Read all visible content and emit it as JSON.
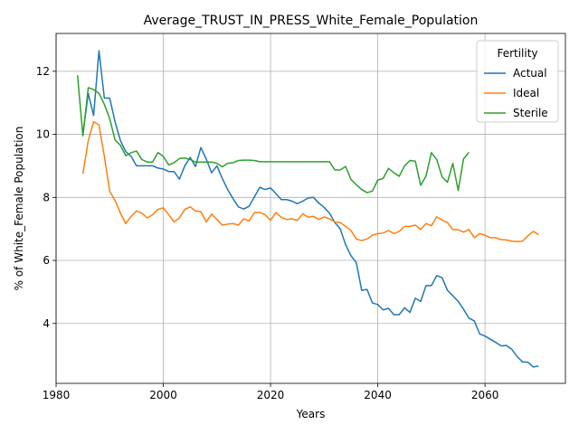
{
  "chart_data": {
    "type": "line",
    "title": "Average_TRUST_IN_PRESS_White_Female_Population",
    "xlabel": "Years",
    "ylabel": "% of White_Female Population",
    "xlim": [
      1980,
      2075
    ],
    "ylim": [
      2.1,
      13.2
    ],
    "xticks": [
      1980,
      2000,
      2020,
      2040,
      2060
    ],
    "yticks": [
      4,
      6,
      8,
      10,
      12
    ],
    "grid": true,
    "legend": {
      "title": "Fertility",
      "position": "top-right"
    },
    "series": [
      {
        "name": "Actual",
        "color": "#1f77b4",
        "x": [
          1985,
          1986,
          1987,
          1988,
          1989,
          1990,
          1991,
          1992,
          1993,
          1994,
          1995,
          1996,
          1997,
          1998,
          1999,
          2000,
          2001,
          2002,
          2003,
          2004,
          2005,
          2006,
          2007,
          2008,
          2009,
          2010,
          2011,
          2012,
          2013,
          2014,
          2015,
          2016,
          2017,
          2018,
          2019,
          2020,
          2021,
          2022,
          2023,
          2024,
          2025,
          2026,
          2027,
          2028,
          2029,
          2030,
          2031,
          2032,
          2033,
          2034,
          2035,
          2036,
          2037,
          2038,
          2039,
          2040,
          2041,
          2042,
          2043,
          2044,
          2045,
          2046,
          2047,
          2048,
          2049,
          2050,
          2051,
          2052,
          2053,
          2054,
          2055,
          2056,
          2057,
          2058,
          2059,
          2060,
          2061,
          2062,
          2063,
          2064,
          2065,
          2066,
          2067,
          2068,
          2069,
          2070
        ],
        "y": [
          10.0,
          11.3,
          10.6,
          12.65,
          11.15,
          11.15,
          10.4,
          9.8,
          9.45,
          9.3,
          9.0,
          9.0,
          9.0,
          9.0,
          8.93,
          8.9,
          8.82,
          8.82,
          8.58,
          9.0,
          9.27,
          8.98,
          9.58,
          9.22,
          8.78,
          9.0,
          8.6,
          8.25,
          7.96,
          7.7,
          7.63,
          7.72,
          8.02,
          8.32,
          8.25,
          8.3,
          8.12,
          7.93,
          7.93,
          7.88,
          7.8,
          7.88,
          7.98,
          8.0,
          7.82,
          7.68,
          7.5,
          7.2,
          7.0,
          6.5,
          6.15,
          5.93,
          5.05,
          5.08,
          4.65,
          4.6,
          4.43,
          4.48,
          4.28,
          4.28,
          4.5,
          4.35,
          4.8,
          4.7,
          5.2,
          5.2,
          5.52,
          5.45,
          5.05,
          4.88,
          4.7,
          4.45,
          4.17,
          4.08,
          3.67,
          3.6,
          3.5,
          3.4,
          3.29,
          3.3,
          3.18,
          2.95,
          2.78,
          2.77,
          2.62,
          2.65
        ]
      },
      {
        "name": "Ideal",
        "color": "#ff7f0e",
        "x": [
          1985,
          1986,
          1987,
          1988,
          1989,
          1990,
          1991,
          1992,
          1993,
          1994,
          1995,
          1996,
          1997,
          1998,
          1999,
          2000,
          2001,
          2002,
          2003,
          2004,
          2005,
          2006,
          2007,
          2008,
          2009,
          2010,
          2011,
          2012,
          2013,
          2014,
          2015,
          2016,
          2017,
          2018,
          2019,
          2020,
          2021,
          2022,
          2023,
          2024,
          2025,
          2026,
          2027,
          2028,
          2029,
          2030,
          2031,
          2032,
          2033,
          2034,
          2035,
          2036,
          2037,
          2038,
          2039,
          2040,
          2041,
          2042,
          2043,
          2044,
          2045,
          2046,
          2047,
          2048,
          2049,
          2050,
          2051,
          2052,
          2053,
          2054,
          2055,
          2056,
          2057,
          2058,
          2059,
          2060,
          2061,
          2062,
          2063,
          2064,
          2065,
          2066,
          2067,
          2068,
          2069,
          2070
        ],
        "y": [
          8.75,
          9.8,
          10.4,
          10.3,
          9.3,
          8.2,
          7.9,
          7.5,
          7.17,
          7.4,
          7.57,
          7.5,
          7.35,
          7.45,
          7.62,
          7.67,
          7.45,
          7.22,
          7.35,
          7.62,
          7.7,
          7.57,
          7.55,
          7.22,
          7.47,
          7.3,
          7.12,
          7.15,
          7.17,
          7.12,
          7.32,
          7.25,
          7.52,
          7.52,
          7.45,
          7.27,
          7.52,
          7.37,
          7.3,
          7.32,
          7.27,
          7.48,
          7.37,
          7.4,
          7.3,
          7.38,
          7.32,
          7.22,
          7.2,
          7.08,
          6.95,
          6.68,
          6.63,
          6.68,
          6.8,
          6.85,
          6.87,
          6.95,
          6.85,
          6.92,
          7.08,
          7.08,
          7.12,
          6.98,
          7.17,
          7.1,
          7.38,
          7.28,
          7.2,
          6.98,
          6.97,
          6.9,
          6.98,
          6.72,
          6.85,
          6.8,
          6.72,
          6.72,
          6.66,
          6.65,
          6.61,
          6.6,
          6.61,
          6.78,
          6.92,
          6.82
        ]
      },
      {
        "name": "Sterile",
        "color": "#2ca02c",
        "x": [
          1984,
          1985,
          1986,
          1987,
          1988,
          1989,
          1990,
          1991,
          1992,
          1993,
          1994,
          1995,
          1996,
          1997,
          1998,
          1999,
          2000,
          2001,
          2002,
          2003,
          2004,
          2005,
          2006,
          2007,
          2008,
          2009,
          2010,
          2011,
          2012,
          2013,
          2014,
          2015,
          2016,
          2017,
          2018,
          2019,
          2020,
          2021,
          2022,
          2023,
          2024,
          2025,
          2026,
          2027,
          2028,
          2029,
          2030,
          2031,
          2032,
          2033,
          2034,
          2035,
          2036,
          2037,
          2038,
          2039,
          2040,
          2041,
          2042,
          2043,
          2044,
          2045,
          2046,
          2047,
          2048,
          2049,
          2050,
          2051,
          2052,
          2053,
          2054,
          2055,
          2056,
          2057
        ],
        "y": [
          11.87,
          9.95,
          11.48,
          11.42,
          11.3,
          10.95,
          10.5,
          9.82,
          9.65,
          9.32,
          9.42,
          9.47,
          9.2,
          9.12,
          9.12,
          9.42,
          9.3,
          9.03,
          9.1,
          9.23,
          9.25,
          9.2,
          9.12,
          9.12,
          9.12,
          9.12,
          9.08,
          8.97,
          9.08,
          9.1,
          9.17,
          9.18,
          9.18,
          9.17,
          9.13,
          9.13,
          9.13,
          9.13,
          9.13,
          9.13,
          9.13,
          9.13,
          9.13,
          9.13,
          9.13,
          9.13,
          9.13,
          9.13,
          8.87,
          8.87,
          8.98,
          8.57,
          8.4,
          8.25,
          8.15,
          8.2,
          8.55,
          8.6,
          8.92,
          8.78,
          8.67,
          9.0,
          9.17,
          9.15,
          8.38,
          8.68,
          9.42,
          9.2,
          8.65,
          8.48,
          9.08,
          8.22,
          9.22,
          9.43
        ]
      }
    ]
  }
}
